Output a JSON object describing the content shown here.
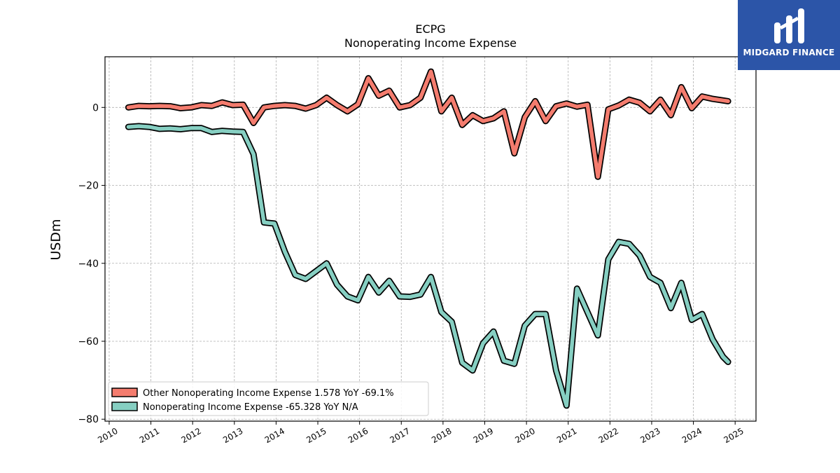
{
  "header": {
    "title": "ECPG",
    "subtitle": "Nonoperating Income Expense"
  },
  "logo": {
    "text": "MIDGARD FINANCE",
    "bg_color": "#2c55a8"
  },
  "chart_data": {
    "type": "line",
    "title": "ECPG",
    "subtitle": "Nonoperating Income Expense",
    "xlabel": "",
    "ylabel": "USDm",
    "xlim": [
      2009.9,
      2025.5
    ],
    "ylim": [
      -80.5,
      13
    ],
    "x_ticks": [
      2010,
      2011,
      2012,
      2013,
      2014,
      2015,
      2016,
      2017,
      2018,
      2019,
      2020,
      2021,
      2022,
      2023,
      2024,
      2025
    ],
    "y_ticks": [
      0,
      -20,
      -40,
      -60,
      -80
    ],
    "grid": true,
    "legend_position": "lower-left",
    "series": [
      {
        "name": "Other Nonoperating Income Expense  1.578 YoY -69.1%",
        "color": "#f47c6e",
        "x": [
          2010.46,
          2010.71,
          2010.96,
          2011.21,
          2011.46,
          2011.71,
          2011.96,
          2012.21,
          2012.46,
          2012.71,
          2012.96,
          2013.21,
          2013.46,
          2013.71,
          2013.96,
          2014.21,
          2014.46,
          2014.71,
          2014.96,
          2015.21,
          2015.46,
          2015.71,
          2015.96,
          2016.21,
          2016.46,
          2016.71,
          2016.96,
          2017.21,
          2017.46,
          2017.71,
          2017.96,
          2018.21,
          2018.46,
          2018.71,
          2018.96,
          2019.21,
          2019.46,
          2019.71,
          2019.96,
          2020.21,
          2020.46,
          2020.71,
          2020.96,
          2021.21,
          2021.46,
          2021.71,
          2021.96,
          2022.21,
          2022.46,
          2022.71,
          2022.96,
          2023.21,
          2023.46,
          2023.71,
          2023.96,
          2024.21,
          2024.46,
          2024.71,
          2024.83
        ],
        "values": [
          0.0,
          0.4,
          0.3,
          0.4,
          0.3,
          -0.2,
          0.0,
          0.6,
          0.4,
          1.3,
          0.6,
          0.7,
          -4.0,
          0.0,
          0.4,
          0.6,
          0.4,
          -0.3,
          0.6,
          2.5,
          0.6,
          -1.0,
          0.8,
          7.5,
          3.0,
          4.3,
          0.0,
          0.6,
          2.5,
          9.2,
          -1.0,
          2.5,
          -4.5,
          -2.0,
          -3.5,
          -2.8,
          -1.0,
          -11.8,
          -2.5,
          1.6,
          -3.5,
          0.3,
          1.0,
          0.2,
          0.7,
          -17.8,
          -0.5,
          0.5,
          2.0,
          1.2,
          -1.0,
          2.0,
          -2.0,
          5.2,
          -0.2,
          2.8,
          2.2,
          1.8,
          1.6
        ]
      },
      {
        "name": "Nonoperating Income Expense  -65.328 YoY N/A",
        "color": "#86cfc2",
        "x": [
          2010.46,
          2010.71,
          2010.96,
          2011.21,
          2011.46,
          2011.71,
          2011.96,
          2012.21,
          2012.46,
          2012.71,
          2012.96,
          2013.21,
          2013.46,
          2013.71,
          2013.96,
          2014.21,
          2014.46,
          2014.71,
          2014.96,
          2015.21,
          2015.46,
          2015.71,
          2015.96,
          2016.21,
          2016.46,
          2016.71,
          2016.96,
          2017.21,
          2017.46,
          2017.71,
          2017.96,
          2018.21,
          2018.46,
          2018.71,
          2018.96,
          2019.21,
          2019.46,
          2019.71,
          2019.96,
          2020.21,
          2020.46,
          2020.71,
          2020.96,
          2021.21,
          2021.46,
          2021.71,
          2021.96,
          2022.21,
          2022.46,
          2022.71,
          2022.96,
          2023.21,
          2023.46,
          2023.71,
          2023.96,
          2024.21,
          2024.46,
          2024.71,
          2024.83
        ],
        "values": [
          -5.0,
          -4.8,
          -5.0,
          -5.5,
          -5.4,
          -5.6,
          -5.3,
          -5.3,
          -6.3,
          -6.0,
          -6.2,
          -6.3,
          -12.0,
          -29.5,
          -29.8,
          -37.0,
          -43.0,
          -44.0,
          -42.0,
          -40.0,
          -45.5,
          -48.5,
          -49.5,
          -43.5,
          -47.5,
          -44.5,
          -48.5,
          -48.6,
          -48.0,
          -43.5,
          -52.5,
          -55.0,
          -65.5,
          -67.5,
          -60.5,
          -57.5,
          -65.0,
          -65.8,
          -56.0,
          -53.0,
          -53.0,
          -67.5,
          -76.5,
          -46.5,
          -52.5,
          -58.5,
          -39.0,
          -34.5,
          -35.0,
          -38.0,
          -43.5,
          -45.0,
          -51.5,
          -45.0,
          -54.5,
          -53.0,
          -59.5,
          -64.0,
          -65.3
        ]
      }
    ]
  }
}
